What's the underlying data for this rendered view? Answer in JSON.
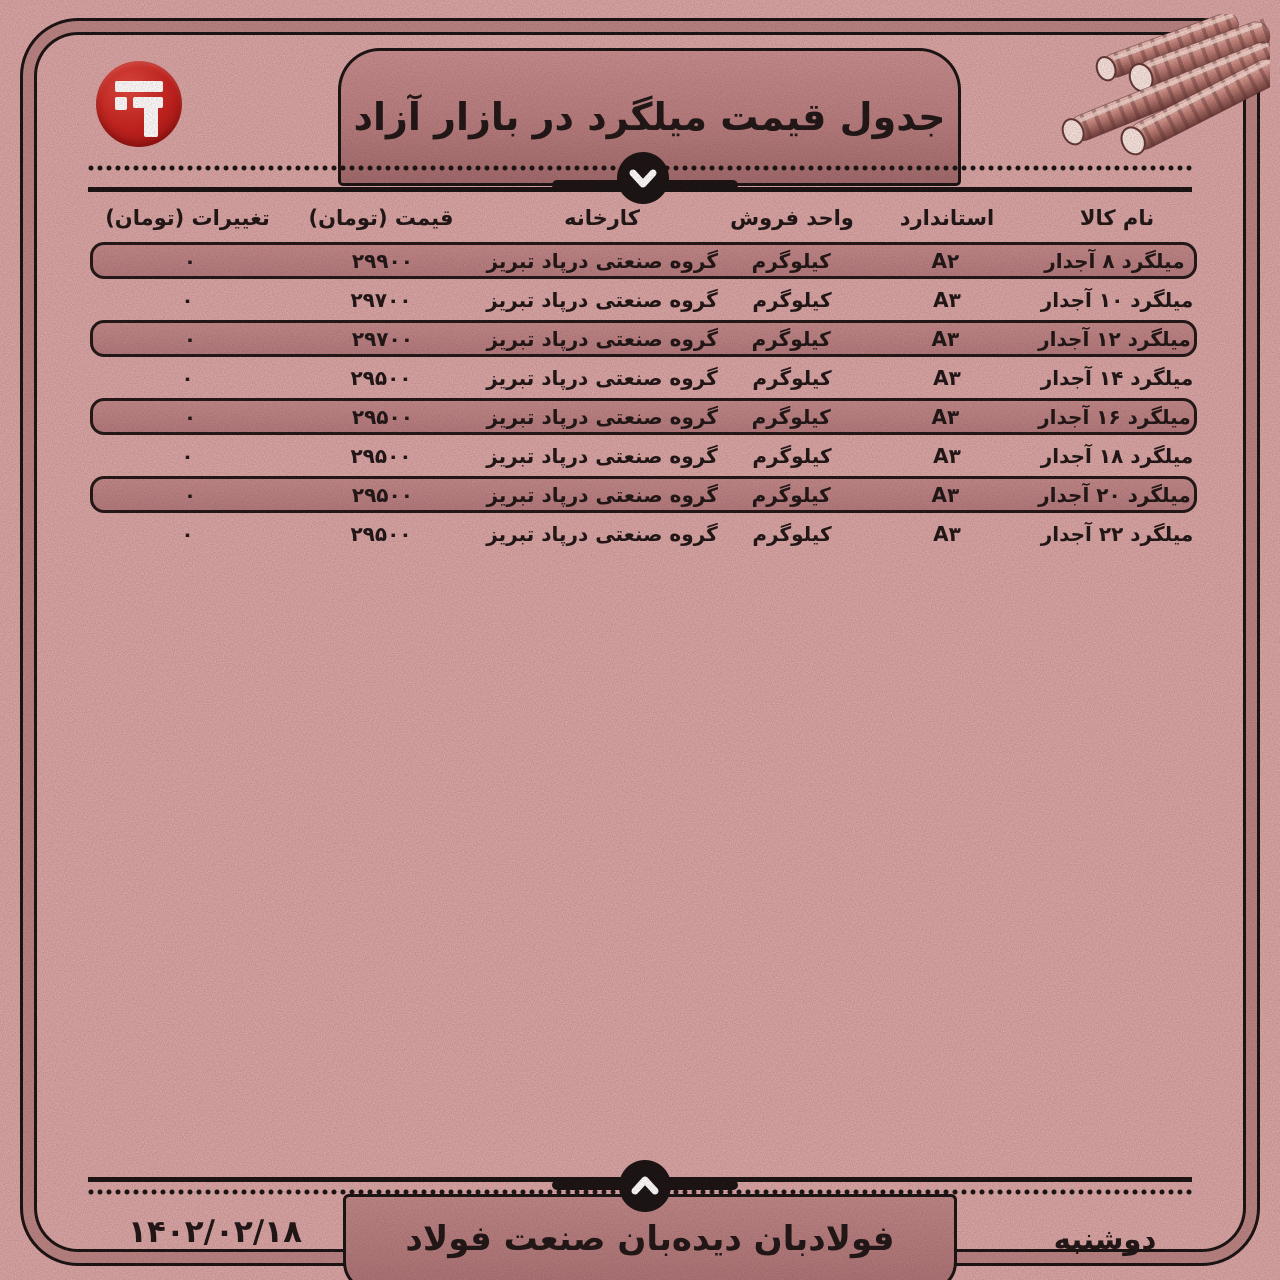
{
  "header": {
    "title": "جدول قیمت میلگرد در بازار آزاد",
    "logo_icon": "fooladban-logo-icon",
    "illustration": "rebar-bundle-illustration",
    "divider_icon": "chevron-down-icon"
  },
  "table": {
    "headers": {
      "name": "نام کالا",
      "standard": "استاندارد",
      "unit": "واحد فروش",
      "factory": "کارخانه",
      "price": "قیمت (تومان)",
      "change": "تغییرات (تومان)"
    },
    "rows": [
      {
        "name": "میلگرد ۸ آجدار",
        "standard": "A۲",
        "unit": "کیلوگرم",
        "factory": "گروه صنعتی درپاد تبریز",
        "price": "۲۹۹۰۰",
        "change": "۰"
      },
      {
        "name": "میلگرد ۱۰ آجدار",
        "standard": "A۳",
        "unit": "کیلوگرم",
        "factory": "گروه صنعتی درپاد تبریز",
        "price": "۲۹۷۰۰",
        "change": "۰"
      },
      {
        "name": "میلگرد ۱۲ آجدار",
        "standard": "A۳",
        "unit": "کیلوگرم",
        "factory": "گروه صنعتی درپاد تبریز",
        "price": "۲۹۷۰۰",
        "change": "۰"
      },
      {
        "name": "میلگرد ۱۴ آجدار",
        "standard": "A۳",
        "unit": "کیلوگرم",
        "factory": "گروه صنعتی درپاد تبریز",
        "price": "۲۹۵۰۰",
        "change": "۰"
      },
      {
        "name": "میلگرد ۱۶ آجدار",
        "standard": "A۳",
        "unit": "کیلوگرم",
        "factory": "گروه صنعتی درپاد تبریز",
        "price": "۲۹۵۰۰",
        "change": "۰"
      },
      {
        "name": "میلگرد ۱۸ آجدار",
        "standard": "A۳",
        "unit": "کیلوگرم",
        "factory": "گروه صنعتی درپاد تبریز",
        "price": "۲۹۵۰۰",
        "change": "۰"
      },
      {
        "name": "میلگرد ۲۰ آجدار",
        "standard": "A۳",
        "unit": "کیلوگرم",
        "factory": "گروه صنعتی درپاد تبریز",
        "price": "۲۹۵۰۰",
        "change": "۰"
      },
      {
        "name": "میلگرد ۲۲ آجدار",
        "standard": "A۳",
        "unit": "کیلوگرم",
        "factory": "گروه صنعتی درپاد تبریز",
        "price": "۲۹۵۰۰",
        "change": "۰"
      }
    ],
    "highlight_pattern": "odd-rows-1-3-5-7"
  },
  "footer": {
    "brand": "فولادبان دیده‌بان صنعت فولاد",
    "date": "۱۴۰۲/۰۲/۱۸",
    "day": "دوشنبه",
    "divider_icon": "chevron-up-icon"
  },
  "colors": {
    "background": "#d8a5a5",
    "panel": "#b87e80",
    "panel_dark": "#a06a6c",
    "line": "#151111",
    "logo_red": "#c31f1b",
    "text": "#1b1414"
  }
}
